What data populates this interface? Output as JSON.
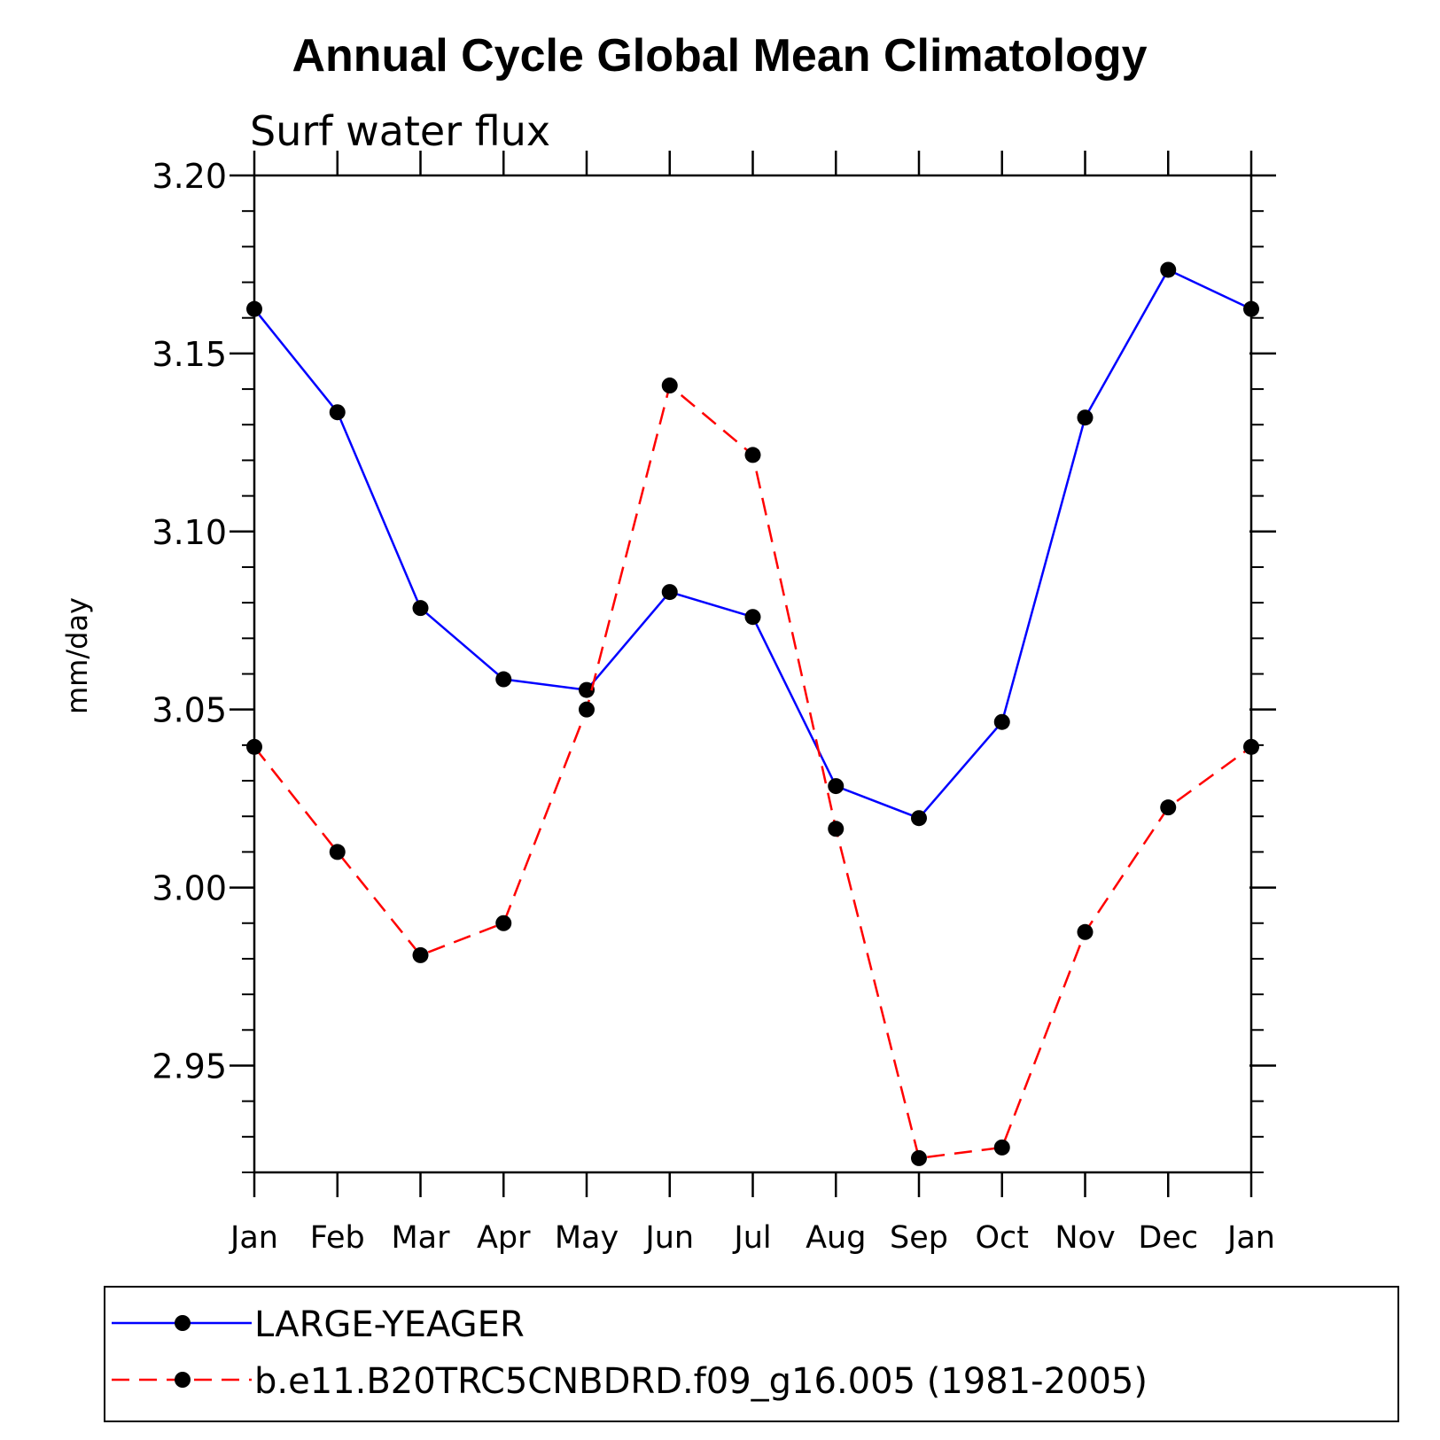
{
  "chart_data": {
    "type": "line",
    "title": "Annual Cycle Global Mean Climatology",
    "subtitle": "Surf water flux",
    "xlabel": "",
    "ylabel": "mm/day",
    "ylim": [
      2.92,
      3.2
    ],
    "yticks": [
      "3.20",
      "3.15",
      "3.10",
      "3.05",
      "3.00",
      "2.95"
    ],
    "ytick_values": [
      3.2,
      3.15,
      3.1,
      3.05,
      3.0,
      2.95
    ],
    "categories": [
      "Jan",
      "Feb",
      "Mar",
      "Apr",
      "May",
      "Jun",
      "Jul",
      "Aug",
      "Sep",
      "Oct",
      "Nov",
      "Dec",
      "Jan"
    ],
    "series": [
      {
        "name": "LARGE-YEAGER",
        "color": "#0000ff",
        "dashed": false,
        "values": [
          3.1625,
          3.1335,
          3.0785,
          3.0585,
          3.0555,
          3.083,
          3.076,
          3.0285,
          3.0195,
          3.0465,
          3.132,
          3.1735,
          3.1625
        ]
      },
      {
        "name": "b.e11.B20TRC5CNBDRD.f09_g16.005 (1981-2005)",
        "color": "#ff0000",
        "dashed": true,
        "values": [
          3.0395,
          3.01,
          2.981,
          2.99,
          3.05,
          3.141,
          3.1215,
          3.0165,
          2.924,
          2.927,
          2.9875,
          3.0225,
          3.0395
        ]
      }
    ],
    "legend_position": "bottom"
  }
}
